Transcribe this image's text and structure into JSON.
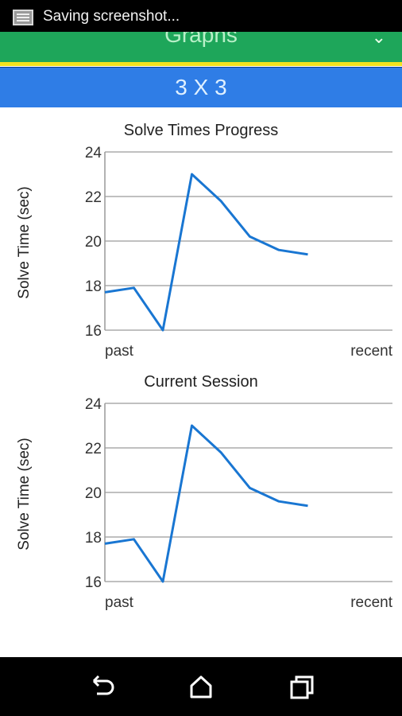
{
  "status_bar": {
    "text": "Saving screenshot..."
  },
  "app_bar": {
    "title": "Graphs",
    "menu_icon": "chevron-down-icon"
  },
  "puzzle": {
    "label": "3 X 3"
  },
  "charts": [
    {
      "title": "Solve Times Progress",
      "ylabel": "Solve Time (sec)",
      "x_left": "past",
      "x_right": "recent"
    },
    {
      "title": "Current Session",
      "ylabel": "Solve Time (sec)",
      "x_left": "past",
      "x_right": "recent"
    }
  ],
  "chart_data": [
    {
      "type": "line",
      "title": "Solve Times Progress",
      "ylabel": "Solve Time (sec)",
      "xlabel": "",
      "ylim": [
        16,
        24
      ],
      "yticks": [
        16,
        18,
        20,
        22,
        24
      ],
      "x_tick_labels": [
        "past",
        "recent"
      ],
      "grid": true,
      "color": "#1976d2",
      "values": [
        17.7,
        17.9,
        16.0,
        23.0,
        21.8,
        20.2,
        19.6,
        19.4
      ]
    },
    {
      "type": "line",
      "title": "Current Session",
      "ylabel": "Solve Time (sec)",
      "xlabel": "",
      "ylim": [
        16,
        24
      ],
      "yticks": [
        16,
        18,
        20,
        22,
        24
      ],
      "x_tick_labels": [
        "past",
        "recent"
      ],
      "grid": true,
      "color": "#1976d2",
      "values": [
        17.7,
        17.9,
        16.0,
        23.0,
        21.8,
        20.2,
        19.6,
        19.4
      ]
    }
  ],
  "nav_bar": {
    "back_icon": "back-icon",
    "home_icon": "home-icon",
    "recents_icon": "recents-icon"
  }
}
